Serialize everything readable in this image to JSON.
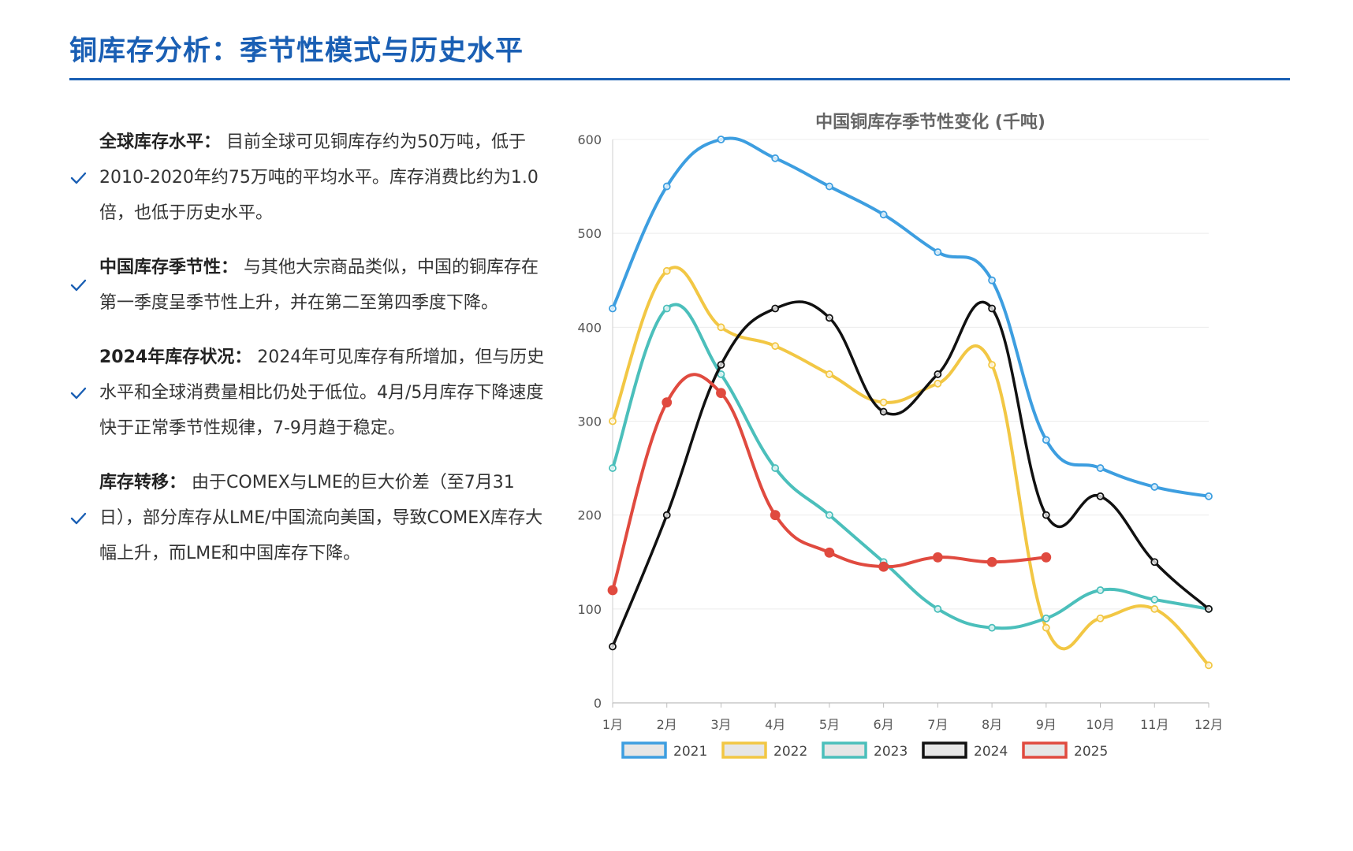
{
  "page": {
    "title": "铜库存分析：季节性模式与历史水平"
  },
  "points": [
    {
      "label": "全球库存水平：",
      "text": "目前全球可见铜库存约为50万吨，低于2010-2020年约75万吨的平均水平。库存消费比约为1.0倍，也低于历史水平。",
      "icon": "check-icon"
    },
    {
      "label": "中国库存季节性：",
      "text": "与其他大宗商品类似，中国的铜库存在第一季度呈季节性上升，并在第二至第四季度下降。",
      "icon": "check-icon"
    },
    {
      "label": "2024年库存状况：",
      "text": "2024年可见库存有所增加，但与历史水平和全球消费量相比仍处于低位。4月/5月库存下降速度快于正常季节性规律，7-9月趋于稳定。",
      "icon": "check-icon"
    },
    {
      "label": "库存转移：",
      "text": "由于COMEX与LME的巨大价差（至7月31日），部分库存从LME/中国流向美国，导致COMEX库存大幅上升，而LME和中国库存下降。",
      "icon": "check-icon"
    }
  ],
  "chart_data": {
    "type": "line",
    "title": "中国铜库存季节性变化 (千吨)",
    "xlabel": "",
    "ylabel": "",
    "categories": [
      "1月",
      "2月",
      "3月",
      "4月",
      "5月",
      "6月",
      "7月",
      "8月",
      "9月",
      "10月",
      "11月",
      "12月"
    ],
    "ylim": [
      0,
      600
    ],
    "yticks": [
      0,
      100,
      200,
      300,
      400,
      500,
      600
    ],
    "grid": true,
    "legend_position": "bottom",
    "series": [
      {
        "name": "2021",
        "color": "#3d9ee0",
        "values": [
          420,
          550,
          600,
          580,
          550,
          520,
          480,
          450,
          280,
          250,
          230,
          220
        ]
      },
      {
        "name": "2022",
        "color": "#f2c744",
        "values": [
          300,
          460,
          400,
          380,
          350,
          320,
          340,
          360,
          80,
          90,
          100,
          40
        ]
      },
      {
        "name": "2023",
        "color": "#4bbfbb",
        "values": [
          250,
          420,
          350,
          250,
          200,
          150,
          100,
          80,
          90,
          120,
          110,
          100
        ]
      },
      {
        "name": "2024",
        "color": "#111111",
        "values": [
          60,
          200,
          360,
          420,
          410,
          310,
          350,
          420,
          200,
          220,
          150,
          100
        ]
      },
      {
        "name": "2025",
        "color": "#e04a3f",
        "values": [
          120,
          320,
          330,
          200,
          160,
          145,
          155,
          150,
          155,
          null,
          null,
          null
        ]
      }
    ]
  }
}
